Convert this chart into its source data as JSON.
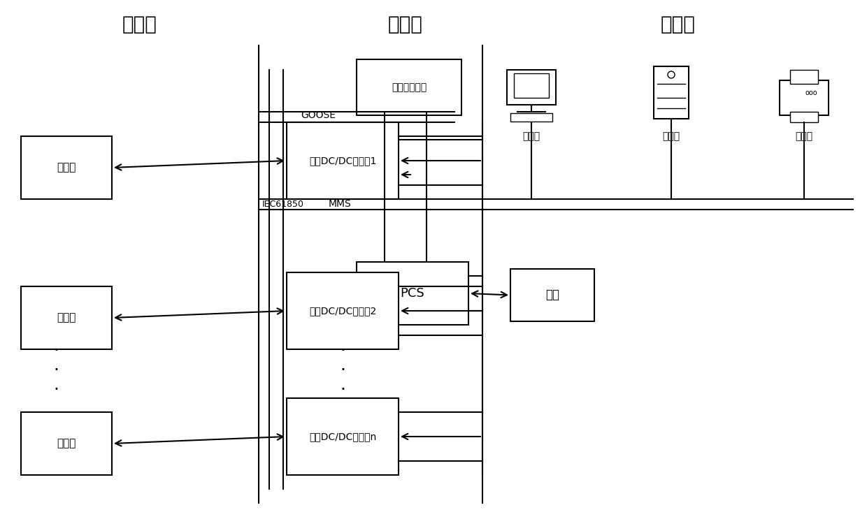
{
  "title_process": "过程层",
  "title_interval": "间隔层",
  "title_station": "站控层",
  "label_battery": "电池族",
  "label_converter1": "双向DC/DC转换全1",
  "label_converter2": "双向DC/DC转换全2",
  "label_convertern": "双向DC/DC转换器n",
  "label_storage": "储能接入终端",
  "label_pcs": "PCS",
  "label_grid": "电网",
  "label_workstation": "工作站",
  "label_server": "务务器",
  "label_printer": "打印机",
  "label_goose": "GOOSE",
  "label_iec": "IEC61850",
  "label_mms": "MMS",
  "bg_color": "#ffffff",
  "box_color": "#000000",
  "line_color": "#000000",
  "text_color": "#000000"
}
